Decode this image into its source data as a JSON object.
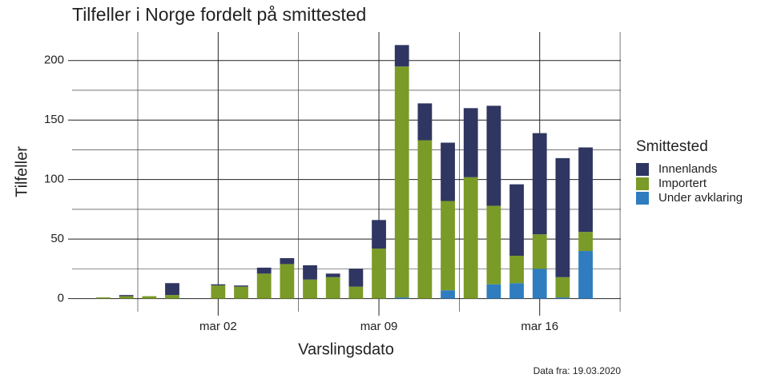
{
  "chart_data": {
    "type": "stacked-bar",
    "title": "Tilfeller i Norge fordelt på smittested",
    "x_label": "Varslingsdato",
    "y_label": "Tilfeller",
    "legend_title": "Smittested",
    "caption": "Data fra: 19.03.2020",
    "categories": [
      null,
      null,
      null,
      null,
      null,
      "mar 02",
      null,
      null,
      null,
      null,
      null,
      null,
      "mar 09",
      null,
      null,
      null,
      null,
      null,
      null,
      "mar 16",
      null,
      null
    ],
    "series": [
      {
        "name": "Innenlands",
        "color": "#2f3661",
        "values": [
          0,
          1,
          0,
          10,
          null,
          1,
          1,
          5,
          5,
          12,
          3,
          15,
          24,
          18,
          31,
          49,
          58,
          84,
          60,
          85,
          100,
          71
        ]
      },
      {
        "name": "Importert",
        "color": "#7a9b27",
        "values": [
          1,
          2,
          2,
          3,
          null,
          11,
          10,
          21,
          29,
          16,
          18,
          10,
          42,
          194,
          133,
          75,
          102,
          66,
          23,
          29,
          17,
          16
        ]
      },
      {
        "name": "Under avklaring",
        "color": "#2f7dbf",
        "values": [
          0,
          0,
          0,
          0,
          null,
          0,
          0,
          0,
          0,
          0,
          0,
          0,
          0,
          1,
          0,
          7,
          0,
          12,
          13,
          25,
          1,
          40
        ]
      }
    ],
    "ylim": [
      -11,
      224
    ],
    "yticks": [
      0,
      50,
      100,
      150,
      200
    ],
    "grid": true
  }
}
